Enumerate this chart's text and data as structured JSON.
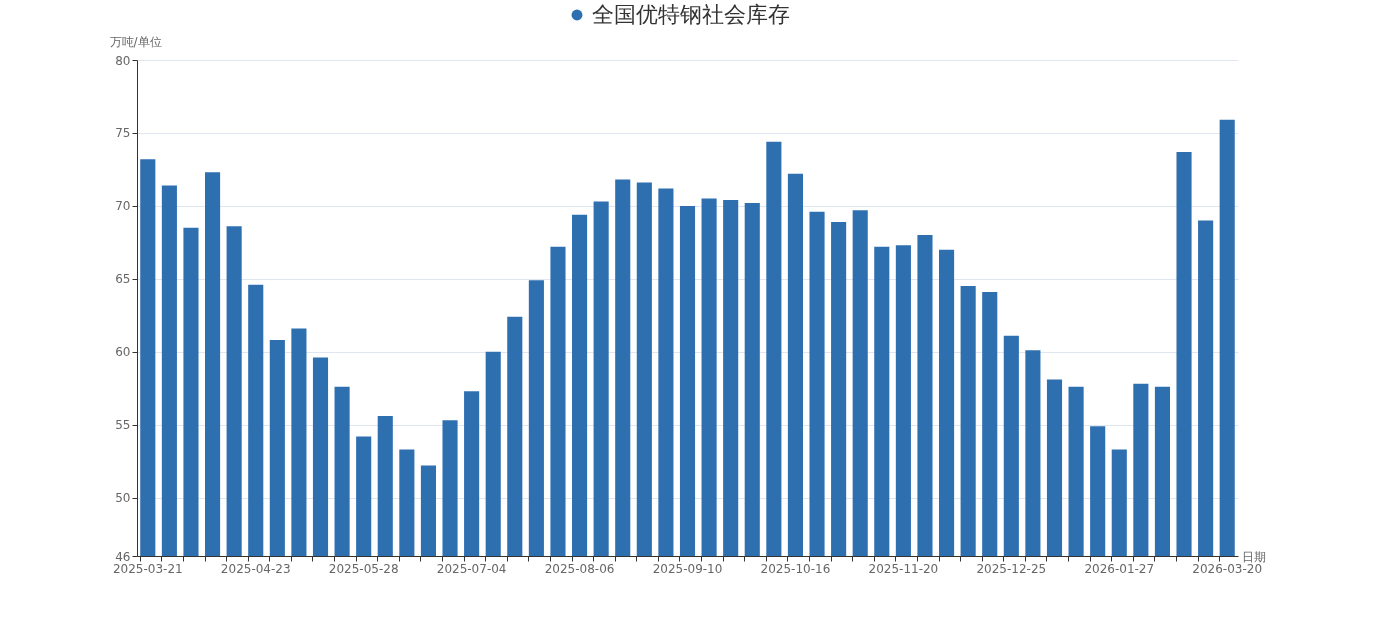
{
  "chart_data": {
    "type": "bar",
    "xlabel": "日期",
    "ylabel": "万吨/单位",
    "categories": [
      "2025-03-21",
      null,
      null,
      null,
      null,
      "2025-04-23",
      null,
      null,
      null,
      null,
      "2025-05-28",
      null,
      null,
      null,
      null,
      "2025-07-04",
      null,
      null,
      null,
      null,
      "2025-08-06",
      null,
      null,
      null,
      null,
      "2025-09-10",
      null,
      null,
      null,
      null,
      "2025-10-16",
      null,
      null,
      null,
      null,
      "2025-11-20",
      null,
      null,
      null,
      null,
      "2025-12-25",
      null,
      null,
      null,
      null,
      "2026-01-27",
      null,
      null,
      null,
      null,
      "2026-03-20"
    ],
    "series": [
      {
        "name": "全国优特钢社会库存",
        "color": "#2e6fb0",
        "values": [
          73.2,
          71.4,
          68.5,
          72.3,
          68.6,
          64.6,
          60.8,
          61.6,
          59.6,
          57.6,
          54.2,
          55.6,
          53.3,
          52.2,
          55.3,
          57.3,
          60.0,
          62.4,
          64.9,
          67.2,
          69.4,
          70.3,
          71.8,
          71.6,
          71.2,
          70.0,
          70.5,
          70.4,
          70.2,
          74.4,
          72.2,
          69.6,
          68.9,
          69.7,
          67.2,
          67.3,
          68.0,
          67.0,
          64.5,
          64.1,
          61.1,
          60.1,
          58.1,
          57.6,
          54.9,
          53.3,
          57.8,
          57.6,
          73.7,
          69.0,
          75.9
        ]
      }
    ],
    "ylim": [
      46,
      80
    ],
    "yticks": [
      46,
      50,
      55,
      60,
      65,
      70,
      75,
      80
    ],
    "grid": "y",
    "legend": "top"
  }
}
